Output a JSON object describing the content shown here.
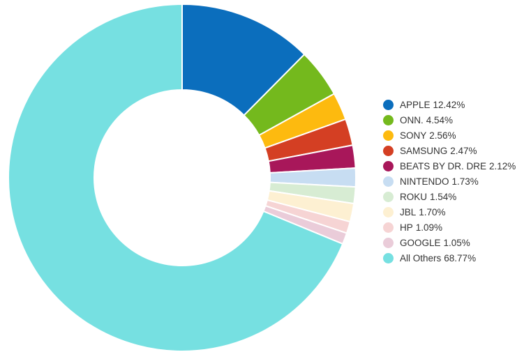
{
  "chart_data": {
    "type": "pie",
    "variant": "donut",
    "legend_position": "right",
    "slices": [
      {
        "label": "APPLE",
        "value": 12.42,
        "display": "12.42%",
        "color": "#0B6EBD"
      },
      {
        "label": "ONN.",
        "value": 4.54,
        "display": "4.54%",
        "color": "#74B91D"
      },
      {
        "label": "SONY",
        "value": 2.56,
        "display": "2.56%",
        "color": "#FDBA0F"
      },
      {
        "label": "SAMSUNG",
        "value": 2.47,
        "display": "2.47%",
        "color": "#D43F23"
      },
      {
        "label": "BEATS BY DR. DRE",
        "value": 2.12,
        "display": "2.12%",
        "color": "#A8175A"
      },
      {
        "label": "NINTENDO",
        "value": 1.73,
        "display": "1.73%",
        "color": "#C7DDF2"
      },
      {
        "label": "ROKU",
        "value": 1.54,
        "display": "1.54%",
        "color": "#D7ECD3"
      },
      {
        "label": "JBL",
        "value": 1.7,
        "display": "1.70%",
        "color": "#FDF0D2"
      },
      {
        "label": "HP",
        "value": 1.09,
        "display": "1.09%",
        "color": "#F6D4D4"
      },
      {
        "label": "GOOGLE",
        "value": 1.05,
        "display": "1.05%",
        "color": "#EACCD9"
      },
      {
        "label": "All Others",
        "value": 68.77,
        "display": "68.77%",
        "color": "#76E0E1"
      }
    ]
  }
}
